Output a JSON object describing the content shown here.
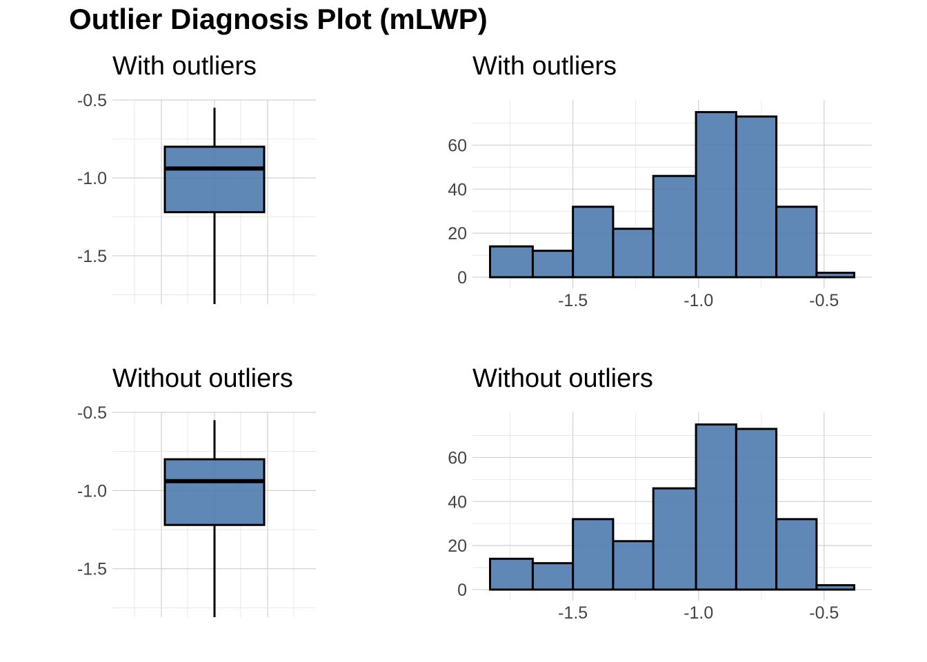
{
  "title": "Outlier Diagnosis Plot (mLWP)",
  "chart_data": [
    {
      "type": "box",
      "title": "With outliers",
      "ylim": [
        -1.81,
        -0.5
      ],
      "yticks": [
        -0.5,
        -1.0,
        -1.5
      ],
      "ytick_labels": [
        "-0.5",
        "-1.0",
        "-1.5"
      ],
      "min": -1.81,
      "q1": -1.22,
      "median": -0.94,
      "q3": -0.8,
      "max": -0.55,
      "grid": true
    },
    {
      "type": "bar",
      "title": "With outliers",
      "bin_edges": [
        -1.83,
        -1.66,
        -1.5,
        -1.34,
        -1.18,
        -1.01,
        -0.85,
        -0.69,
        -0.53,
        -0.38
      ],
      "counts": [
        14,
        12,
        32,
        22,
        46,
        75,
        73,
        32,
        2
      ],
      "xticks": [
        -1.5,
        -1.0,
        -0.5
      ],
      "xtick_labels": [
        "-1.5",
        "-1.0",
        "-0.5"
      ],
      "yticks": [
        0,
        20,
        40,
        60
      ],
      "ytick_labels": [
        "0",
        "20",
        "40",
        "60"
      ],
      "xlim": [
        -1.9,
        -0.31
      ],
      "ylim": [
        0,
        78
      ],
      "grid": true
    },
    {
      "type": "box",
      "title": "Without outliers",
      "ylim": [
        -1.81,
        -0.5
      ],
      "yticks": [
        -0.5,
        -1.0,
        -1.5
      ],
      "ytick_labels": [
        "-0.5",
        "-1.0",
        "-1.5"
      ],
      "min": -1.81,
      "q1": -1.22,
      "median": -0.94,
      "q3": -0.8,
      "max": -0.55,
      "grid": true
    },
    {
      "type": "bar",
      "title": "Without outliers",
      "bin_edges": [
        -1.83,
        -1.66,
        -1.5,
        -1.34,
        -1.18,
        -1.01,
        -0.85,
        -0.69,
        -0.53,
        -0.38
      ],
      "counts": [
        14,
        12,
        32,
        22,
        46,
        75,
        73,
        32,
        2
      ],
      "xticks": [
        -1.5,
        -1.0,
        -0.5
      ],
      "xtick_labels": [
        "-1.5",
        "-1.0",
        "-0.5"
      ],
      "yticks": [
        0,
        20,
        40,
        60
      ],
      "ytick_labels": [
        "0",
        "20",
        "40",
        "60"
      ],
      "xlim": [
        -1.9,
        -0.31
      ],
      "ylim": [
        0,
        78
      ],
      "grid": true
    }
  ]
}
